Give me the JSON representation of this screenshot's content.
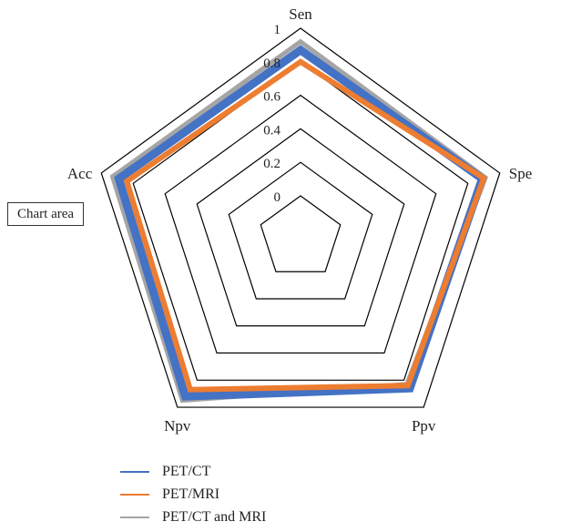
{
  "chart_data": {
    "type": "radar",
    "axes": [
      "Sen",
      "Spe",
      "Ppv",
      "Npv",
      "Acc"
    ],
    "ticks": [
      "0",
      "0.2",
      "0.4",
      "0.6",
      "0.8",
      "1"
    ],
    "rlim": [
      0,
      1
    ],
    "series": [
      {
        "name": "PET/CT",
        "color": "#4472c4",
        "values": [
          0.87,
          0.89,
          0.86,
          0.92,
          0.89
        ]
      },
      {
        "name": "PET/MRI",
        "color": "#ed7d31",
        "values": [
          0.8,
          0.9,
          0.84,
          0.87,
          0.84
        ]
      },
      {
        "name": "PET/CT and MRI",
        "color": "#a5a5a5",
        "values": [
          0.92,
          0.91,
          0.83,
          0.95,
          0.93
        ]
      }
    ],
    "annotation": "Chart area",
    "legend_position": "bottom",
    "grid": true
  }
}
